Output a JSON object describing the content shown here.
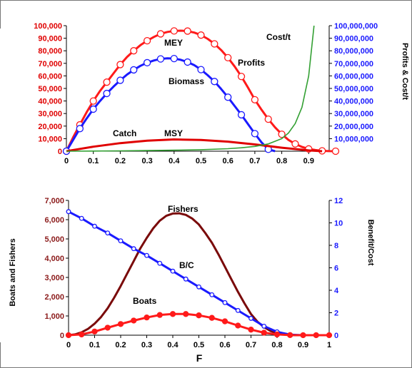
{
  "chart_data": [
    {
      "type": "line",
      "title": "",
      "x": [
        0,
        0.05,
        0.1,
        0.15,
        0.2,
        0.25,
        0.3,
        0.35,
        0.4,
        0.45,
        0.5,
        0.55,
        0.6,
        0.65,
        0.7,
        0.75,
        0.8,
        0.85,
        0.9,
        0.95,
        1.0
      ],
      "xlim": [
        0,
        1
      ],
      "x_ticks": [
        "0",
        "0.1",
        "0.2",
        "0.3",
        "0.4",
        "0.5",
        "0.6",
        "0.7",
        "0.8",
        "0.9"
      ],
      "y_left": {
        "ylim": [
          0,
          100000
        ],
        "ticks": [
          "0",
          "10,000",
          "20,000",
          "30,000",
          "40,000",
          "50,000",
          "60,000",
          "70,000",
          "80,000",
          "90,000",
          "100,000"
        ],
        "color": "#e00000"
      },
      "y_right": {
        "label": "Profits & Cost/t",
        "ylim": [
          0,
          100000000
        ],
        "ticks": [
          "0",
          "10,000,000",
          "20,000,000",
          "30,000,000",
          "40,000,000",
          "50,000,000",
          "60,000,000",
          "70,000,000",
          "80,000,000",
          "90,000,000",
          "100,000,000"
        ],
        "color": "#1a1aff"
      },
      "series": [
        {
          "name": "Profits",
          "axis": "left",
          "color": "#ff1a1a",
          "marker": "open-circle",
          "x": [
            0,
            0.025,
            0.05,
            0.075,
            0.1,
            0.125,
            0.15,
            0.175,
            0.2,
            0.225,
            0.25,
            0.275,
            0.3,
            0.325,
            0.35,
            0.375,
            0.4,
            0.425,
            0.45,
            0.475,
            0.5,
            0.525,
            0.55,
            0.575,
            0.6,
            0.625,
            0.65,
            0.675,
            0.7,
            0.725,
            0.75,
            0.775,
            0.8,
            0.825,
            0.85,
            0.875,
            0.9,
            0.925,
            0.95,
            0.975,
            1.0
          ],
          "values": [
            0,
            11000,
            21000,
            31000,
            40000,
            48000,
            55000,
            62000,
            69000,
            75000,
            80000,
            84500,
            88000,
            91000,
            93500,
            95000,
            95800,
            96000,
            95700,
            94500,
            92500,
            89500,
            85500,
            80500,
            74500,
            67500,
            59500,
            50500,
            41000,
            33000,
            25500,
            19000,
            13500,
            9000,
            5800,
            3400,
            1800,
            900,
            300,
            50,
            0
          ]
        },
        {
          "name": "Biomass",
          "axis": "left",
          "color": "#1a1aff",
          "marker": "open-circle",
          "x": [
            0,
            0.025,
            0.05,
            0.075,
            0.1,
            0.125,
            0.15,
            0.175,
            0.2,
            0.225,
            0.25,
            0.275,
            0.3,
            0.325,
            0.35,
            0.375,
            0.4,
            0.425,
            0.45,
            0.475,
            0.5,
            0.525,
            0.55,
            0.575,
            0.6,
            0.625,
            0.65,
            0.675,
            0.7,
            0.725,
            0.75,
            0.775
          ],
          "values": [
            0,
            9000,
            18000,
            26000,
            33500,
            40000,
            46000,
            51500,
            56500,
            61000,
            64800,
            68000,
            70500,
            72300,
            73500,
            74000,
            73800,
            72800,
            71000,
            68500,
            65000,
            60500,
            55500,
            49500,
            43000,
            36000,
            29000,
            21500,
            14000,
            7000,
            1500,
            0
          ]
        },
        {
          "name": "Catch",
          "axis": "left",
          "color": "#e00000",
          "marker": "none",
          "x": [
            0,
            0.1,
            0.2,
            0.3,
            0.4,
            0.5,
            0.6,
            0.7,
            0.8,
            0.9,
            0.95
          ],
          "values": [
            0,
            3600,
            6400,
            8400,
            9400,
            9000,
            7600,
            5400,
            2800,
            600,
            0
          ]
        },
        {
          "name": "Cost/t",
          "axis": "right",
          "color": "#33a033",
          "marker": "none",
          "x": [
            0,
            0.1,
            0.2,
            0.3,
            0.4,
            0.5,
            0.6,
            0.65,
            0.7,
            0.75,
            0.8,
            0.825,
            0.85,
            0.875,
            0.9,
            0.92
          ],
          "values": [
            0,
            100000,
            300000,
            500000,
            800000,
            1200000,
            2000000,
            2700000,
            3800000,
            5800000,
            10000000,
            14500000,
            22000000,
            35000000,
            60000000,
            100000000
          ]
        }
      ],
      "annotations": [
        "MEY",
        "Profits",
        "Biomass",
        "Catch",
        "MSY",
        "Cost/t"
      ]
    },
    {
      "type": "line",
      "title": "",
      "xlabel": "F",
      "x": [
        0,
        0.05,
        0.1,
        0.15,
        0.2,
        0.25,
        0.3,
        0.35,
        0.4,
        0.45,
        0.5,
        0.55,
        0.6,
        0.65,
        0.7,
        0.75,
        0.8,
        0.85,
        0.9,
        0.95,
        1.0
      ],
      "xlim": [
        0,
        1
      ],
      "x_ticks": [
        "0",
        "0.1",
        "0.2",
        "0.3",
        "0.4",
        "0.5",
        "0.6",
        "0.7",
        "0.8",
        "0.9",
        "1"
      ],
      "y_left": {
        "label": "Boats and Fishers",
        "ylim": [
          0,
          7000
        ],
        "ticks": [
          "0",
          "1,000",
          "2,000",
          "3,000",
          "4,000",
          "5,000",
          "6,000",
          "7,000"
        ],
        "color": "#8b1a1a"
      },
      "y_right": {
        "label": "Benefit/Cost",
        "ylim": [
          0,
          12
        ],
        "ticks": [
          "0",
          "2",
          "4",
          "6",
          "8",
          "10",
          "12"
        ],
        "color": "#1a1aff"
      },
      "series": [
        {
          "name": "Fishers",
          "axis": "left",
          "color": "#7a0a0a",
          "marker": "none",
          "x": [
            0,
            0.025,
            0.05,
            0.075,
            0.1,
            0.125,
            0.15,
            0.175,
            0.2,
            0.225,
            0.25,
            0.275,
            0.3,
            0.325,
            0.35,
            0.375,
            0.4,
            0.425,
            0.45,
            0.475,
            0.5,
            0.525,
            0.55,
            0.575,
            0.6,
            0.625,
            0.65,
            0.675,
            0.7,
            0.725,
            0.75,
            0.775,
            0.8,
            0.825,
            0.85,
            0.875,
            0.9,
            1.0
          ],
          "values": [
            0,
            40,
            150,
            330,
            600,
            950,
            1400,
            1950,
            2550,
            3200,
            3850,
            4500,
            5050,
            5550,
            5950,
            6200,
            6320,
            6330,
            6250,
            6050,
            5750,
            5300,
            4800,
            4200,
            3550,
            2900,
            2250,
            1650,
            1100,
            700,
            420,
            220,
            100,
            40,
            10,
            0,
            0,
            0
          ]
        },
        {
          "name": "B/C",
          "axis": "right",
          "color": "#1a1aff",
          "marker": "open-circle",
          "values": [
            11.0,
            10.4,
            9.7,
            9.1,
            8.4,
            7.7,
            7.1,
            6.4,
            5.7,
            5.0,
            4.3,
            3.6,
            2.9,
            2.2,
            1.5,
            0.8,
            0.3,
            0.05,
            0,
            0,
            0
          ]
        },
        {
          "name": "Boats",
          "axis": "left",
          "color": "#ff1a1a",
          "marker": "filled-circle",
          "values": [
            0,
            40,
            190,
            390,
            580,
            760,
            920,
            1050,
            1100,
            1100,
            1030,
            900,
            720,
            500,
            290,
            130,
            40,
            5,
            0,
            0,
            0
          ]
        }
      ],
      "annotations": [
        "Fishers",
        "B/C",
        "Boats"
      ]
    }
  ]
}
